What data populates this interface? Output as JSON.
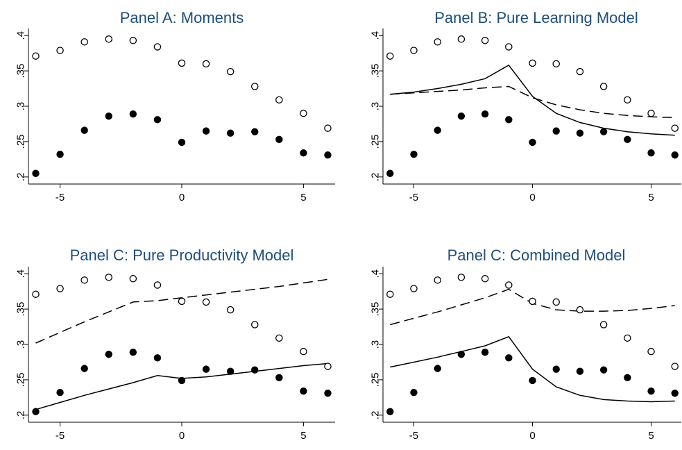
{
  "chart_data": [
    {
      "type": "scatter",
      "title": "Panel A: Moments",
      "xlim": [
        -6.3,
        6.3
      ],
      "ylim": [
        0.19,
        0.41
      ],
      "xticks": [
        -5,
        0,
        5
      ],
      "yticks": [
        0.2,
        0.25,
        0.3,
        0.35,
        0.4
      ],
      "xtick_labels": [
        "-5",
        "0",
        "5"
      ],
      "ytick_labels": [
        ".2",
        ".25",
        ".3",
        ".35",
        ".4"
      ],
      "grid": false,
      "x": [
        -6,
        -5,
        -4,
        -3,
        -2,
        -1,
        0,
        1,
        2,
        3,
        4,
        5,
        6
      ],
      "series": [
        {
          "marker": "hollow-circle",
          "values": [
            0.371,
            0.379,
            0.391,
            0.395,
            0.393,
            0.384,
            0.361,
            0.36,
            0.349,
            0.328,
            0.309,
            0.29,
            0.269
          ]
        },
        {
          "marker": "filled-circle",
          "values": [
            0.205,
            0.232,
            0.266,
            0.286,
            0.289,
            0.281,
            0.249,
            0.265,
            0.262,
            0.264,
            0.253,
            0.234,
            0.231
          ]
        }
      ],
      "lines": []
    },
    {
      "type": "line",
      "title": "Panel B: Pure Learning Model",
      "xlim": [
        -6.3,
        6.3
      ],
      "ylim": [
        0.19,
        0.41
      ],
      "xticks": [
        -5,
        0,
        5
      ],
      "yticks": [
        0.2,
        0.25,
        0.3,
        0.35,
        0.4
      ],
      "xtick_labels": [
        "-5",
        "0",
        "5"
      ],
      "ytick_labels": [
        ".2",
        ".25",
        ".3",
        ".35",
        ".4"
      ],
      "grid": false,
      "x": [
        -6,
        -5,
        -4,
        -3,
        -2,
        -1,
        0,
        1,
        2,
        3,
        4,
        5,
        6
      ],
      "series": [
        {
          "marker": "hollow-circle",
          "values": [
            0.371,
            0.379,
            0.391,
            0.395,
            0.393,
            0.384,
            0.361,
            0.36,
            0.349,
            0.328,
            0.309,
            0.29,
            0.269
          ]
        },
        {
          "marker": "filled-circle",
          "values": [
            0.205,
            0.232,
            0.266,
            0.286,
            0.289,
            0.281,
            0.249,
            0.265,
            0.262,
            0.264,
            0.253,
            0.234,
            0.231
          ]
        }
      ],
      "lines": [
        {
          "style": "solid",
          "values": [
            0.317,
            0.32,
            0.325,
            0.331,
            0.339,
            0.358,
            0.314,
            0.29,
            0.277,
            0.269,
            0.264,
            0.261,
            0.259
          ]
        },
        {
          "style": "dashed",
          "values": [
            0.317,
            0.319,
            0.321,
            0.323,
            0.326,
            0.328,
            0.312,
            0.302,
            0.295,
            0.29,
            0.287,
            0.285,
            0.284
          ]
        }
      ]
    },
    {
      "type": "line",
      "title": "Panel C: Pure Productivity Model",
      "xlim": [
        -6.3,
        6.3
      ],
      "ylim": [
        0.19,
        0.41
      ],
      "xticks": [
        -5,
        0,
        5
      ],
      "yticks": [
        0.2,
        0.25,
        0.3,
        0.35,
        0.4
      ],
      "xtick_labels": [
        "-5",
        "0",
        "5"
      ],
      "ytick_labels": [
        ".2",
        ".25",
        ".3",
        ".35",
        ".4"
      ],
      "grid": false,
      "x": [
        -6,
        -5,
        -4,
        -3,
        -2,
        -1,
        0,
        1,
        2,
        3,
        4,
        5,
        6
      ],
      "series": [
        {
          "marker": "hollow-circle",
          "values": [
            0.371,
            0.379,
            0.391,
            0.395,
            0.393,
            0.384,
            0.361,
            0.36,
            0.349,
            0.328,
            0.309,
            0.29,
            0.269
          ]
        },
        {
          "marker": "filled-circle",
          "values": [
            0.205,
            0.232,
            0.266,
            0.286,
            0.289,
            0.281,
            0.249,
            0.265,
            0.262,
            0.264,
            0.253,
            0.234,
            0.231
          ]
        }
      ],
      "lines": [
        {
          "style": "solid",
          "values": [
            0.208,
            0.218,
            0.228,
            0.237,
            0.246,
            0.256,
            0.252,
            0.254,
            0.258,
            0.262,
            0.266,
            0.27,
            0.273
          ]
        },
        {
          "style": "dashed",
          "values": [
            0.302,
            0.317,
            0.332,
            0.346,
            0.36,
            0.362,
            0.366,
            0.37,
            0.374,
            0.378,
            0.382,
            0.387,
            0.392
          ]
        }
      ]
    },
    {
      "type": "line",
      "title": "Panel C: Combined Model",
      "xlim": [
        -6.3,
        6.3
      ],
      "ylim": [
        0.19,
        0.41
      ],
      "xticks": [
        -5,
        0,
        5
      ],
      "yticks": [
        0.2,
        0.25,
        0.3,
        0.35,
        0.4
      ],
      "xtick_labels": [
        "-5",
        "0",
        "5"
      ],
      "ytick_labels": [
        ".2",
        ".25",
        ".3",
        ".35",
        ".4"
      ],
      "grid": false,
      "x": [
        -6,
        -5,
        -4,
        -3,
        -2,
        -1,
        0,
        1,
        2,
        3,
        4,
        5,
        6
      ],
      "series": [
        {
          "marker": "hollow-circle",
          "values": [
            0.371,
            0.379,
            0.391,
            0.395,
            0.393,
            0.384,
            0.361,
            0.36,
            0.349,
            0.328,
            0.309,
            0.29,
            0.269
          ]
        },
        {
          "marker": "filled-circle",
          "values": [
            0.205,
            0.232,
            0.266,
            0.286,
            0.289,
            0.281,
            0.249,
            0.265,
            0.262,
            0.264,
            0.253,
            0.234,
            0.231
          ]
        }
      ],
      "lines": [
        {
          "style": "solid",
          "values": [
            0.268,
            0.275,
            0.282,
            0.29,
            0.298,
            0.311,
            0.265,
            0.24,
            0.228,
            0.222,
            0.22,
            0.219,
            0.22
          ]
        },
        {
          "style": "dashed",
          "values": [
            0.328,
            0.337,
            0.346,
            0.356,
            0.366,
            0.378,
            0.358,
            0.349,
            0.347,
            0.347,
            0.348,
            0.351,
            0.355
          ]
        }
      ]
    }
  ]
}
